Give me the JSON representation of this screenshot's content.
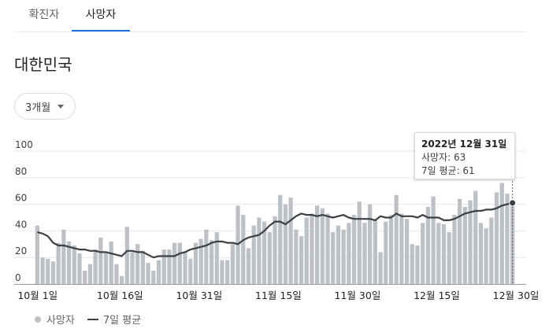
{
  "tabs": [
    {
      "label": "확진자"
    },
    {
      "label": "사망자"
    }
  ],
  "region": "대한민국",
  "period": {
    "selected": "3개월"
  },
  "tooltip": {
    "date": "2022년 12월 31일",
    "deaths": "사망자: 63",
    "average": "7일 평균: 61"
  },
  "legend": {
    "bars": "사망자",
    "line": "7일 평균"
  },
  "colors": {
    "bar": "#bdc1c6",
    "line": "#3c4043",
    "accent": "#1a73e8",
    "grid": "#e8eaed"
  },
  "chart_data": {
    "type": "bar",
    "title": "",
    "xlabel": "",
    "ylabel": "",
    "ylim": [
      0,
      100
    ],
    "yticks": [
      0,
      20,
      40,
      60,
      80,
      100
    ],
    "xtick_labels": [
      {
        "index": 0,
        "label": "10월 1일"
      },
      {
        "index": 15,
        "label": "10월 16일"
      },
      {
        "index": 30,
        "label": "10월 31일"
      },
      {
        "index": 45,
        "label": "11월 15일"
      },
      {
        "index": 60,
        "label": "11월 30일"
      },
      {
        "index": 75,
        "label": "12월 15일"
      },
      {
        "index": 90,
        "label": "12월 30일"
      }
    ],
    "start_label": "10월 1일",
    "end_label": "12월 31일",
    "series": [
      {
        "name": "사망자",
        "values": [
          44,
          20,
          19,
          17,
          31,
          41,
          32,
          29,
          23,
          10,
          15,
          26,
          35,
          24,
          32,
          15,
          6,
          43,
          24,
          30,
          25,
          16,
          10,
          18,
          26,
          26,
          31,
          31,
          24,
          19,
          31,
          34,
          41,
          33,
          39,
          18,
          18,
          30,
          59,
          52,
          27,
          44,
          50,
          47,
          39,
          51,
          67,
          60,
          65,
          41,
          36,
          50,
          53,
          59,
          57,
          53,
          39,
          44,
          41,
          46,
          52,
          62,
          46,
          60,
          48,
          24,
          47,
          52,
          67,
          53,
          49,
          30,
          29,
          46,
          58,
          66,
          46,
          45,
          39,
          52,
          64,
          58,
          63,
          70,
          46,
          42,
          50,
          69,
          76,
          68,
          63
        ]
      },
      {
        "name": "7일 평균",
        "values": [
          39,
          38,
          36,
          31,
          29,
          29,
          28,
          27,
          26,
          26,
          25,
          25,
          24,
          24,
          23,
          22,
          21,
          25,
          25,
          24,
          24,
          22,
          20,
          21,
          21,
          21,
          21,
          23,
          24,
          26,
          27,
          28,
          29,
          31,
          32,
          32,
          31,
          31,
          30,
          33,
          35,
          36,
          37,
          40,
          44,
          47,
          47,
          45,
          48,
          51,
          53,
          52,
          52,
          51,
          52,
          51,
          50,
          51,
          52,
          50,
          49,
          49,
          49,
          49,
          48,
          51,
          50,
          50,
          53,
          51,
          51,
          51,
          50,
          52,
          50,
          50,
          50,
          48,
          48,
          49,
          51,
          53,
          54,
          55,
          55,
          56,
          56,
          57,
          59,
          60,
          61
        ]
      }
    ]
  }
}
